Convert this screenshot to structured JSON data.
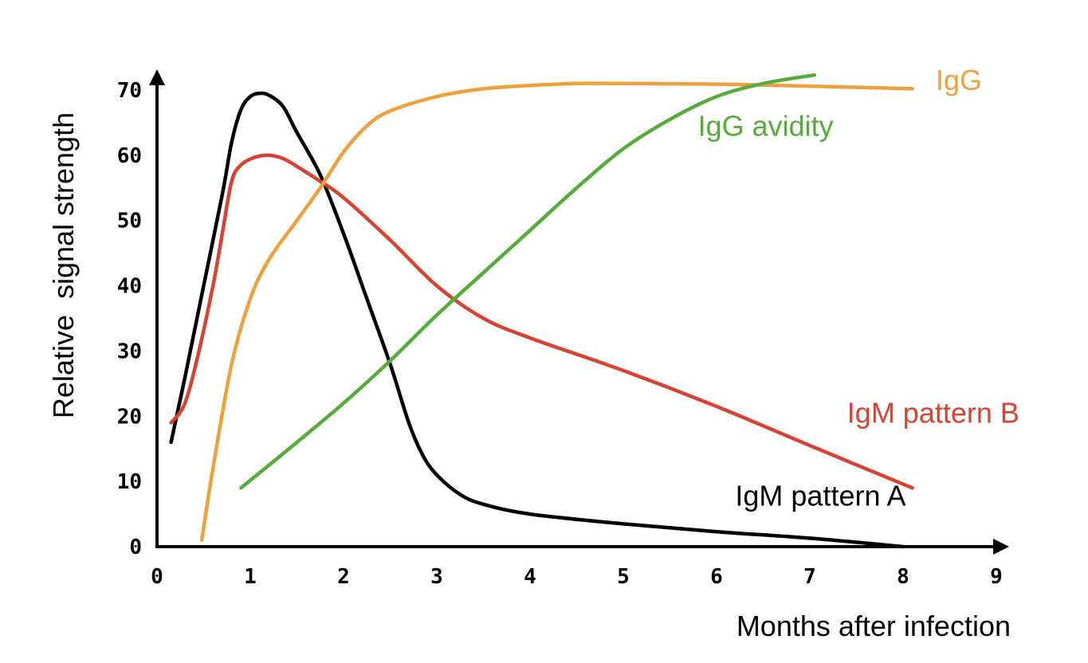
{
  "chart_data": {
    "type": "line",
    "xlabel": "Months after infection",
    "ylabel": "Relative  signal strength",
    "xlim": [
      0,
      9
    ],
    "ylim": [
      0,
      70
    ],
    "x_ticks": [
      "0",
      "1",
      "2",
      "3",
      "4",
      "5",
      "6",
      "7",
      "8",
      "9"
    ],
    "y_ticks": [
      "0",
      "10",
      "20",
      "30",
      "40",
      "50",
      "60",
      "70"
    ],
    "grid": false,
    "legend": "none",
    "series": [
      {
        "name": "IgM pattern A",
        "color": "#000000",
        "points": [
          [
            0.15,
            16
          ],
          [
            0.3,
            26
          ],
          [
            0.5,
            40
          ],
          [
            0.7,
            54
          ],
          [
            0.8,
            62
          ],
          [
            0.9,
            67
          ],
          [
            1.0,
            69
          ],
          [
            1.1,
            69.5
          ],
          [
            1.2,
            69.2
          ],
          [
            1.35,
            67.5
          ],
          [
            1.5,
            63.5
          ],
          [
            1.75,
            57
          ],
          [
            2.0,
            48
          ],
          [
            2.25,
            38
          ],
          [
            2.5,
            28
          ],
          [
            2.7,
            19
          ],
          [
            2.85,
            14
          ],
          [
            3.0,
            11
          ],
          [
            3.25,
            8
          ],
          [
            3.5,
            6.5
          ],
          [
            4.0,
            5
          ],
          [
            5.0,
            3.5
          ],
          [
            6.0,
            2.3
          ],
          [
            7.0,
            1.3
          ],
          [
            8.0,
            0
          ]
        ]
      },
      {
        "name": "IgM pattern B",
        "color": "#d94232",
        "points": [
          [
            0.15,
            19
          ],
          [
            0.3,
            22
          ],
          [
            0.45,
            30
          ],
          [
            0.6,
            40
          ],
          [
            0.7,
            48
          ],
          [
            0.8,
            56
          ],
          [
            0.9,
            58.5
          ],
          [
            1.05,
            59.7
          ],
          [
            1.2,
            60
          ],
          [
            1.35,
            59.5
          ],
          [
            1.5,
            58.3
          ],
          [
            1.75,
            56
          ],
          [
            2.0,
            53.5
          ],
          [
            2.5,
            47
          ],
          [
            3.0,
            40
          ],
          [
            3.5,
            35
          ],
          [
            4.0,
            32
          ],
          [
            5.0,
            27
          ],
          [
            6.0,
            21.5
          ],
          [
            7.0,
            15.5
          ],
          [
            8.1,
            9
          ]
        ]
      },
      {
        "name": "IgG",
        "color": "#f0a03a",
        "points": [
          [
            0.48,
            1
          ],
          [
            0.6,
            12
          ],
          [
            0.8,
            28
          ],
          [
            1.0,
            38
          ],
          [
            1.2,
            44
          ],
          [
            1.5,
            50
          ],
          [
            1.75,
            55
          ],
          [
            2.0,
            60.5
          ],
          [
            2.25,
            64.5
          ],
          [
            2.5,
            66.8
          ],
          [
            3.0,
            69
          ],
          [
            3.5,
            70.2
          ],
          [
            4.0,
            70.7
          ],
          [
            4.5,
            71
          ],
          [
            5.0,
            71
          ],
          [
            6.0,
            70.9
          ],
          [
            7.0,
            70.6
          ],
          [
            8.1,
            70.2
          ]
        ]
      },
      {
        "name": "IgG avidity",
        "color": "#54ad38",
        "points": [
          [
            0.9,
            9
          ],
          [
            1.5,
            16
          ],
          [
            2.0,
            22
          ],
          [
            2.5,
            28.5
          ],
          [
            3.0,
            35.5
          ],
          [
            3.5,
            42
          ],
          [
            4.0,
            48.5
          ],
          [
            4.5,
            55
          ],
          [
            5.0,
            61
          ],
          [
            5.5,
            65.5
          ],
          [
            6.0,
            69
          ],
          [
            6.5,
            71
          ],
          [
            7.05,
            72.3
          ]
        ]
      }
    ],
    "annotations": [
      {
        "series": 0,
        "text": "IgM pattern A",
        "at": [
          6.2,
          6.3
        ]
      },
      {
        "series": 1,
        "text": "IgM pattern B",
        "at": [
          7.4,
          19
        ]
      },
      {
        "series": 2,
        "text": "IgG",
        "at": [
          8.35,
          70
        ]
      },
      {
        "series": 3,
        "text": "IgG avidity",
        "at": [
          5.8,
          63
        ]
      }
    ]
  }
}
